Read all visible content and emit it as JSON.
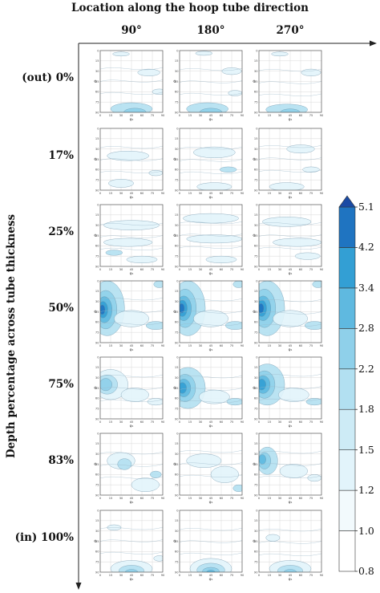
{
  "chart_data": {
    "type": "heatmap",
    "title": "Location along the hoop tube direction",
    "ylabel": "Depth percentage across tube thickness",
    "columns": [
      "90°",
      "180°",
      "270°"
    ],
    "rows": [
      "(out)  0%",
      "17%",
      "25%",
      "50%",
      "75%",
      "83%",
      "(in) 100%"
    ],
    "panel_xlabel": "φ₁",
    "panel_ylabel": "Φ",
    "panel_xticks": [
      0,
      15,
      30,
      45,
      60,
      75,
      90
    ],
    "panel_yticks": [
      0,
      15,
      30,
      45,
      60,
      75,
      90
    ],
    "colorbar": {
      "levels": [
        0.8,
        1.0,
        1.2,
        1.5,
        1.8,
        2.2,
        2.8,
        3.4,
        4.2,
        5.1
      ],
      "colors": [
        "#ffffff",
        "#f2fafd",
        "#e2f4fb",
        "#cdebf6",
        "#b2e0f1",
        "#8fd0ea",
        "#5fb9e0",
        "#339fd4",
        "#1f74c1",
        "#1a4aa4"
      ]
    },
    "blob_colors": [
      "#e2f4fb",
      "#b2e0f1",
      "#8fd0ea",
      "#5fb9e0",
      "#339fd4",
      "#1f74c1",
      "#1a4aa4"
    ],
    "panels": [
      [
        {
          "max": 2.2,
          "blobs": [
            [
              30,
              5,
              12,
              3,
              1
            ],
            [
              70,
              32,
              16,
              5,
              1
            ],
            [
              45,
              85,
              30,
              9,
              2
            ],
            [
              50,
              90,
              16,
              6,
              3
            ],
            [
              85,
              60,
              10,
              4,
              1
            ]
          ]
        },
        {
          "max": 2.2,
          "blobs": [
            [
              35,
              4,
              12,
              3,
              1
            ],
            [
              75,
              30,
              14,
              5,
              1
            ],
            [
              40,
              85,
              30,
              9,
              2
            ],
            [
              45,
              90,
              16,
              6,
              3
            ],
            [
              80,
              62,
              10,
              4,
              1
            ]
          ]
        },
        {
          "max": 1.8,
          "blobs": [
            [
              30,
              5,
              12,
              3,
              1
            ],
            [
              75,
              32,
              14,
              5,
              1
            ],
            [
              40,
              86,
              30,
              8,
              2
            ],
            [
              45,
              90,
              14,
              5,
              3
            ]
          ]
        }
      ],
      [
        {
          "max": 1.8,
          "blobs": [
            [
              40,
              40,
              30,
              7,
              1
            ],
            [
              30,
              80,
              18,
              6,
              1
            ],
            [
              80,
              65,
              10,
              4,
              1
            ]
          ]
        },
        {
          "max": 1.8,
          "blobs": [
            [
              50,
              35,
              30,
              8,
              1
            ],
            [
              50,
              85,
              25,
              6,
              1
            ],
            [
              70,
              60,
              12,
              4,
              2
            ]
          ]
        },
        {
          "max": 1.8,
          "blobs": [
            [
              60,
              30,
              20,
              6,
              1
            ],
            [
              40,
              85,
              25,
              6,
              1
            ],
            [
              75,
              60,
              12,
              4,
              1
            ]
          ]
        }
      ],
      [
        {
          "max": 1.8,
          "blobs": [
            [
              45,
              30,
              40,
              7,
              1
            ],
            [
              40,
              55,
              35,
              6,
              1
            ],
            [
              60,
              80,
              22,
              5,
              1
            ],
            [
              20,
              70,
              12,
              4,
              2
            ]
          ]
        },
        {
          "max": 1.8,
          "blobs": [
            [
              45,
              20,
              40,
              7,
              1
            ],
            [
              50,
              50,
              40,
              6,
              1
            ],
            [
              60,
              80,
              22,
              5,
              1
            ]
          ]
        },
        {
          "max": 1.8,
          "blobs": [
            [
              40,
              25,
              35,
              7,
              1
            ],
            [
              55,
              55,
              35,
              6,
              1
            ],
            [
              70,
              75,
              18,
              5,
              1
            ]
          ]
        }
      ],
      [
        {
          "max": 5.1,
          "blobs": [
            [
              10,
              40,
              25,
              40,
              2
            ],
            [
              8,
              42,
              16,
              28,
              3
            ],
            [
              6,
              42,
              11,
              19,
              4
            ],
            [
              4,
              42,
              7,
              12,
              5
            ],
            [
              3,
              42,
              4,
              7,
              6
            ],
            [
              45,
              55,
              25,
              12,
              1
            ],
            [
              80,
              65,
              14,
              6,
              2
            ],
            [
              85,
              5,
              8,
              5,
              2
            ]
          ]
        },
        {
          "max": 5.1,
          "blobs": [
            [
              12,
              40,
              25,
              40,
              2
            ],
            [
              8,
              40,
              16,
              28,
              3
            ],
            [
              6,
              40,
              11,
              18,
              4
            ],
            [
              4,
              40,
              7,
              12,
              5
            ],
            [
              3,
              40,
              4,
              7,
              6
            ],
            [
              45,
              55,
              25,
              12,
              1
            ],
            [
              80,
              65,
              14,
              6,
              2
            ],
            [
              85,
              5,
              8,
              5,
              2
            ]
          ]
        },
        {
          "max": 5.1,
          "blobs": [
            [
              12,
              40,
              25,
              40,
              2
            ],
            [
              8,
              40,
              16,
              28,
              3
            ],
            [
              6,
              40,
              11,
              18,
              4
            ],
            [
              4,
              40,
              7,
              12,
              5
            ],
            [
              3,
              40,
              4,
              7,
              6
            ],
            [
              45,
              55,
              25,
              12,
              1
            ],
            [
              80,
              65,
              14,
              6,
              2
            ],
            [
              85,
              5,
              8,
              5,
              2
            ]
          ]
        }
      ],
      [
        {
          "max": 3.4,
          "blobs": [
            [
              15,
              40,
              25,
              22,
              1
            ],
            [
              10,
              40,
              15,
              14,
              2
            ],
            [
              8,
              40,
              9,
              9,
              3
            ],
            [
              50,
              55,
              20,
              10,
              1
            ],
            [
              80,
              65,
              12,
              5,
              1
            ]
          ]
        },
        {
          "max": 4.2,
          "blobs": [
            [
              12,
              45,
              25,
              30,
              2
            ],
            [
              8,
              45,
              15,
              20,
              3
            ],
            [
              6,
              45,
              10,
              13,
              4
            ],
            [
              4,
              45,
              6,
              8,
              5
            ],
            [
              50,
              58,
              22,
              10,
              1
            ],
            [
              80,
              65,
              12,
              5,
              2
            ]
          ]
        },
        {
          "max": 4.2,
          "blobs": [
            [
              12,
              40,
              25,
              30,
              2
            ],
            [
              8,
              40,
              15,
              20,
              3
            ],
            [
              6,
              40,
              10,
              13,
              4
            ],
            [
              4,
              40,
              6,
              8,
              5
            ],
            [
              50,
              55,
              22,
              10,
              1
            ],
            [
              80,
              65,
              12,
              5,
              2
            ]
          ]
        }
      ],
      [
        {
          "max": 2.2,
          "blobs": [
            [
              30,
              40,
              20,
              12,
              1
            ],
            [
              35,
              45,
              10,
              8,
              2
            ],
            [
              65,
              75,
              20,
              10,
              1
            ],
            [
              80,
              60,
              8,
              5,
              2
            ]
          ]
        },
        {
          "max": 1.8,
          "blobs": [
            [
              35,
              40,
              25,
              10,
              1
            ],
            [
              65,
              60,
              20,
              12,
              1
            ],
            [
              85,
              80,
              8,
              5,
              2
            ]
          ]
        },
        {
          "max": 3.4,
          "blobs": [
            [
              12,
              40,
              15,
              20,
              2
            ],
            [
              8,
              40,
              9,
              12,
              3
            ],
            [
              5,
              38,
              5,
              7,
              4
            ],
            [
              50,
              55,
              20,
              10,
              1
            ],
            [
              80,
              65,
              10,
              5,
              1
            ]
          ]
        }
      ],
      [
        {
          "max": 2.2,
          "blobs": [
            [
              45,
              85,
              30,
              12,
              1
            ],
            [
              45,
              88,
              18,
              8,
              2
            ],
            [
              45,
              90,
              9,
              4,
              3
            ],
            [
              85,
              70,
              8,
              4,
              1
            ],
            [
              20,
              25,
              10,
              4,
              1
            ]
          ]
        },
        {
          "max": 2.8,
          "blobs": [
            [
              45,
              85,
              30,
              15,
              1
            ],
            [
              45,
              87,
              20,
              10,
              2
            ],
            [
              45,
              89,
              12,
              6,
              3
            ],
            [
              45,
              90,
              6,
              3,
              4
            ]
          ]
        },
        {
          "max": 2.2,
          "blobs": [
            [
              45,
              85,
              30,
              12,
              1
            ],
            [
              45,
              88,
              18,
              8,
              2
            ],
            [
              45,
              90,
              9,
              4,
              3
            ],
            [
              20,
              40,
              10,
              5,
              1
            ]
          ]
        }
      ]
    ]
  }
}
